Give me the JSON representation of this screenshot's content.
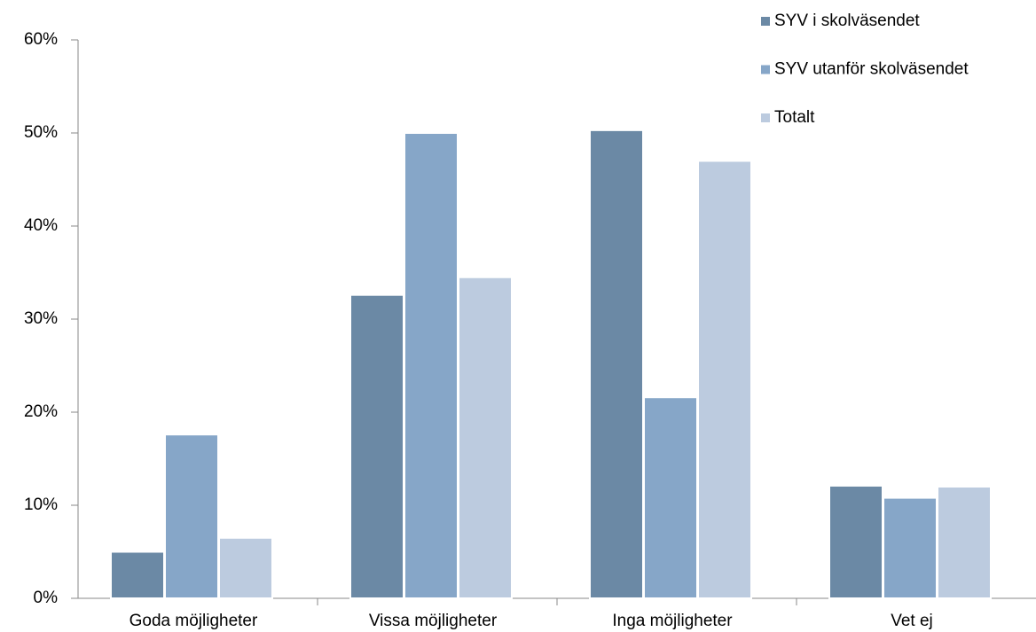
{
  "chart_data": {
    "type": "bar",
    "categories": [
      "Goda möjligheter",
      "Vissa möjligheter",
      "Inga möjligheter",
      "Vet ej"
    ],
    "series": [
      {
        "name": "SYV i skolväsendet",
        "color": "#6b89a5",
        "values": [
          5.0,
          32.6,
          50.3,
          12.1
        ]
      },
      {
        "name": "SYV utanför skolväsendet",
        "color": "#86a6c8",
        "values": [
          17.6,
          50.0,
          21.6,
          10.8
        ]
      },
      {
        "name": "Totalt",
        "color": "#bccbdf",
        "values": [
          6.5,
          34.5,
          47.0,
          12.0
        ]
      }
    ],
    "ylim": [
      0,
      60
    ],
    "yticks": [
      {
        "value": 0,
        "label": "0%"
      },
      {
        "value": 10,
        "label": "10%"
      },
      {
        "value": 20,
        "label": "20%"
      },
      {
        "value": 30,
        "label": "30%"
      },
      {
        "value": 40,
        "label": "40%"
      },
      {
        "value": 50,
        "label": "50%"
      },
      {
        "value": 60,
        "label": "60%"
      }
    ],
    "legend": "top-right",
    "grid": false
  }
}
